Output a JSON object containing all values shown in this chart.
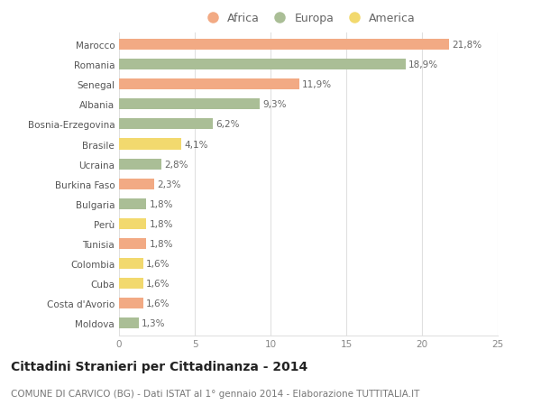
{
  "categories": [
    "Marocco",
    "Romania",
    "Senegal",
    "Albania",
    "Bosnia-Erzegovina",
    "Brasile",
    "Ucraina",
    "Burkina Faso",
    "Bulgaria",
    "Perù",
    "Tunisia",
    "Colombia",
    "Cuba",
    "Costa d'Avorio",
    "Moldova"
  ],
  "values": [
    21.8,
    18.9,
    11.9,
    9.3,
    6.2,
    4.1,
    2.8,
    2.3,
    1.8,
    1.8,
    1.8,
    1.6,
    1.6,
    1.6,
    1.3
  ],
  "continents": [
    "Africa",
    "Europa",
    "Africa",
    "Europa",
    "Europa",
    "America",
    "Europa",
    "Africa",
    "Europa",
    "America",
    "Africa",
    "America",
    "America",
    "Africa",
    "Europa"
  ],
  "colors": {
    "Africa": "#F2AA84",
    "Europa": "#AABE96",
    "America": "#F2D96E"
  },
  "xlim": [
    0,
    25
  ],
  "xticks": [
    0,
    5,
    10,
    15,
    20,
    25
  ],
  "title": "Cittadini Stranieri per Cittadinanza - 2014",
  "subtitle": "COMUNE DI CARVICO (BG) - Dati ISTAT al 1° gennaio 2014 - Elaborazione TUTTITALIA.IT",
  "background_color": "#ffffff",
  "grid_color": "#e0e0e0",
  "bar_height": 0.55,
  "label_fontsize": 7.5,
  "tick_fontsize": 7.5,
  "title_fontsize": 10,
  "subtitle_fontsize": 7.5,
  "legend_fontsize": 9
}
